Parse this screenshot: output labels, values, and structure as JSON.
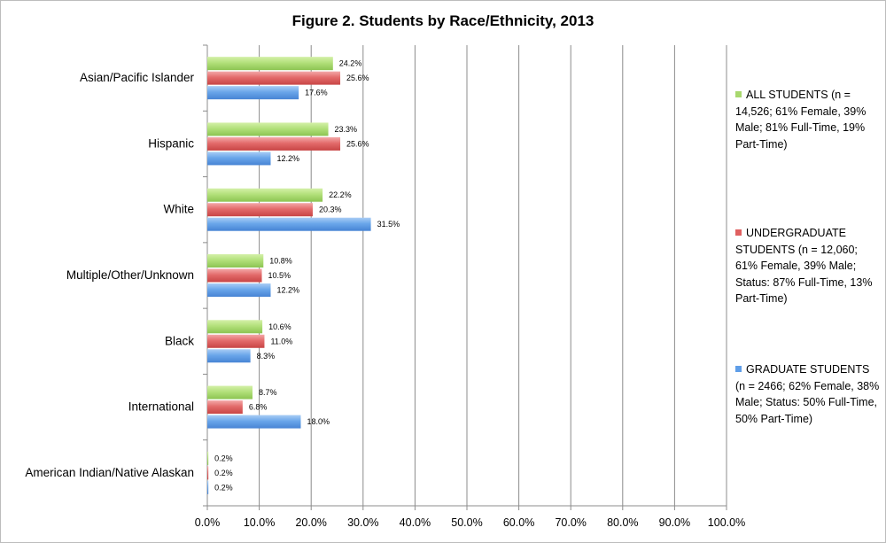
{
  "chart_data": {
    "type": "bar",
    "orientation": "horizontal",
    "title": "Figure 2. Students by Race/Ethnicity, 2013",
    "xlabel": "",
    "ylabel": "",
    "xlim": [
      0,
      100
    ],
    "x_ticks": [
      "0.0%",
      "10.0%",
      "20.0%",
      "30.0%",
      "40.0%",
      "50.0%",
      "60.0%",
      "70.0%",
      "80.0%",
      "90.0%",
      "100.0%"
    ],
    "grid": true,
    "legend_position": "right",
    "categories": [
      "Asian/Pacific Islander",
      "Hispanic",
      "White",
      "Multiple/Other/Unknown",
      "Black",
      "International",
      "American Indian/Native Alaskan"
    ],
    "series": [
      {
        "name": "ALL STUDENTS (n = 14,526; 61% Female, 39% Male; 81% Full-Time, 19% Part-Time)",
        "color": "#a8d86e",
        "values": [
          24.2,
          23.3,
          22.2,
          10.8,
          10.6,
          8.7,
          0.2
        ],
        "labels": [
          "24.2%",
          "23.3%",
          "22.2%",
          "10.8%",
          "10.6%",
          "8.7%",
          "0.2%"
        ]
      },
      {
        "name": "UNDERGRADUATE STUDENTS (n = 12,060; 61% Female, 39% Male; Status: 87% Full-Time, 13% Part-Time)",
        "color": "#e06060",
        "values": [
          25.6,
          25.6,
          20.3,
          10.5,
          11.0,
          6.8,
          0.2
        ],
        "labels": [
          "25.6%",
          "25.6%",
          "20.3%",
          "10.5%",
          "11.0%",
          "6.8%",
          "0.2%"
        ]
      },
      {
        "name": "GRADUATE STUDENTS (n = 2466; 62% Female, 38% Male; Status: 50% Full-Time, 50% Part-Time)",
        "color": "#5f9ee8",
        "values": [
          17.6,
          12.2,
          31.5,
          12.2,
          8.3,
          18.0,
          0.2
        ],
        "labels": [
          "17.6%",
          "12.2%",
          "31.5%",
          "12.2%",
          "8.3%",
          "18.0%",
          "0.2%"
        ]
      }
    ]
  }
}
